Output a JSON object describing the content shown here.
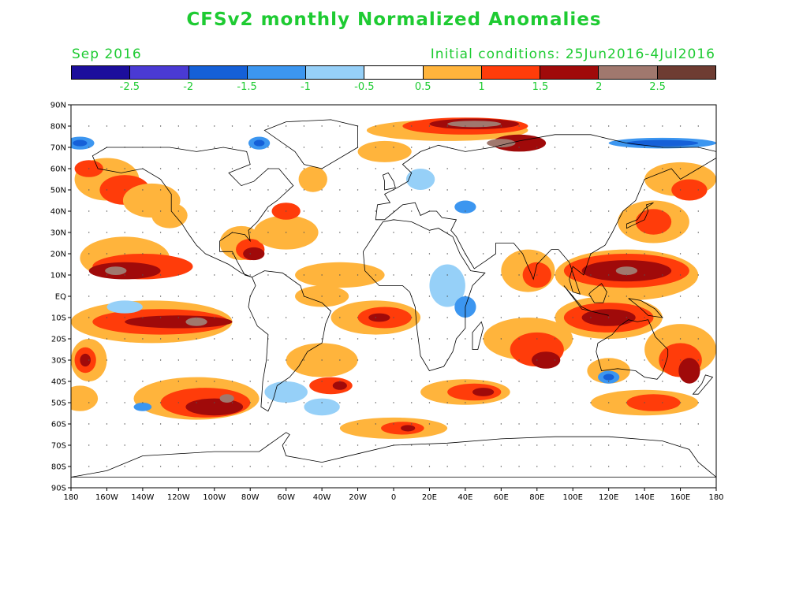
{
  "title": "CFSv2 monthly Normalized Anomalies",
  "subtitle_left": "Sep 2016",
  "subtitle_right": "Initial conditions: 25Jun2016-4Jul2016",
  "colorbar": {
    "colors": [
      "#1c0e9c",
      "#4a3ad4",
      "#1560d8",
      "#3c96f0",
      "#96d0f8",
      "#ffffff",
      "#ffb43c",
      "#ff3c0a",
      "#a00a0a",
      "#a0786e",
      "#6e3c32"
    ],
    "labels": [
      "-2.5",
      "-2",
      "-1.5",
      "-1",
      "-0.5",
      "0.5",
      "1",
      "1.5",
      "2",
      "2.5"
    ]
  },
  "map": {
    "lat_labels": [
      "90N",
      "80N",
      "70N",
      "60N",
      "50N",
      "40N",
      "30N",
      "20N",
      "10N",
      "EQ",
      "10S",
      "20S",
      "30S",
      "40S",
      "50S",
      "60S",
      "70S",
      "80S",
      "90S"
    ],
    "lon_labels": [
      "180",
      "160W",
      "140W",
      "120W",
      "100W",
      "80W",
      "60W",
      "40W",
      "20W",
      "0",
      "20E",
      "40E",
      "60E",
      "80E",
      "100E",
      "120E",
      "140E",
      "160E",
      "180"
    ],
    "lon_range": [
      -180,
      180
    ],
    "lat_range": [
      -90,
      90
    ],
    "grid_step_deg": 10
  }
}
